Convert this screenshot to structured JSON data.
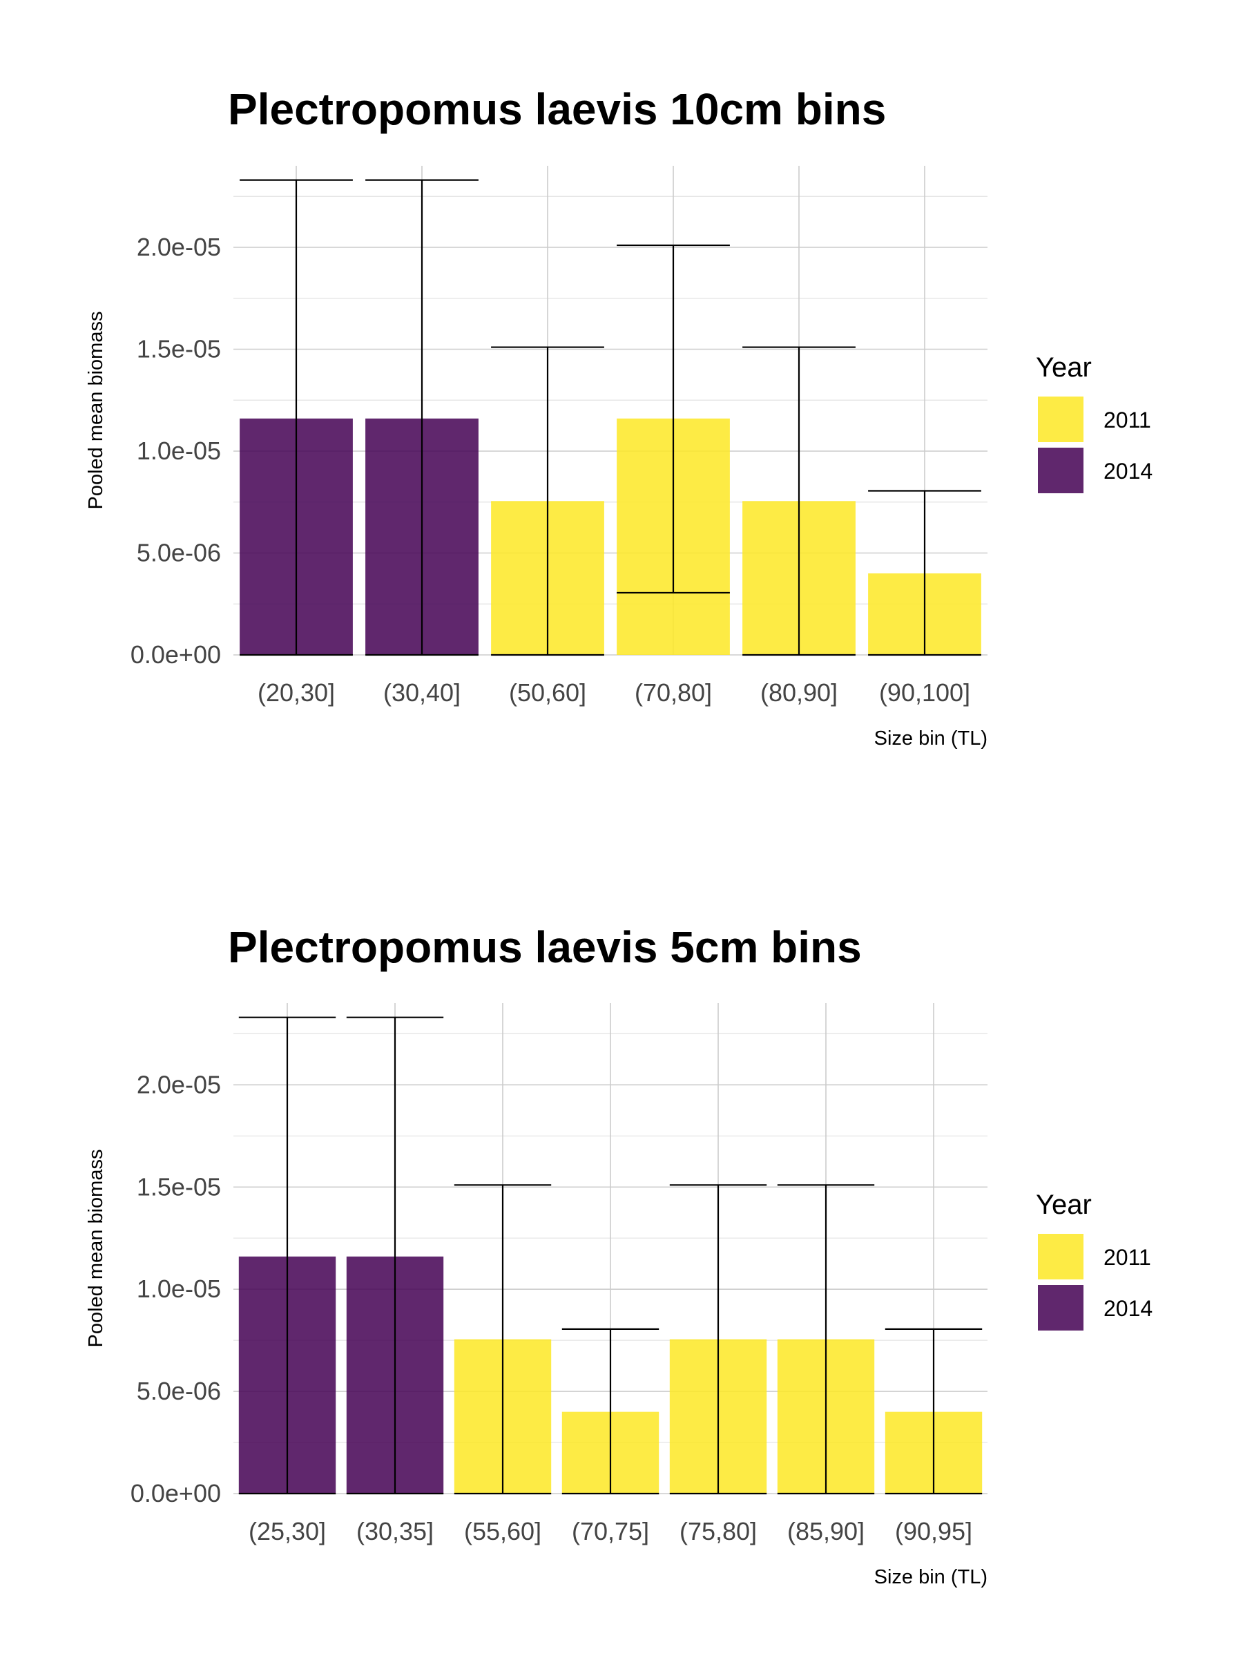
{
  "chart_data": [
    {
      "type": "bar",
      "title": "Plectropomus laevis 10cm bins",
      "xlabel": "Size bin (TL)",
      "ylabel": "Pooled mean biomass",
      "ylim": [
        0,
        2.4e-05
      ],
      "y_ticks": [
        0,
        5e-06,
        1e-05,
        1.5e-05,
        2e-05
      ],
      "y_tick_labels": [
        "0.0e+00",
        "5.0e-06",
        "1.0e-05",
        "1.5e-05",
        "2.0e-05"
      ],
      "categories": [
        "(20,30]",
        "(30,40]",
        "(50,60]",
        "(70,80]",
        "(80,90]",
        "(90,100]"
      ],
      "values": [
        1.16e-05,
        1.16e-05,
        7.55e-06,
        1.16e-05,
        7.55e-06,
        4e-06
      ],
      "years": [
        "2014",
        "2014",
        "2011",
        "2011",
        "2011",
        "2011"
      ],
      "error_lower": [
        0,
        0,
        0,
        3.05e-06,
        0,
        0
      ],
      "error_upper": [
        2.33e-05,
        2.33e-05,
        1.51e-05,
        2.01e-05,
        1.51e-05,
        8.05e-06
      ],
      "grid": true,
      "legend": {
        "title": "Year",
        "placement": "right",
        "entries": [
          {
            "label": "2011",
            "color": "#FDE725"
          },
          {
            "label": "2014",
            "color": "#440154"
          }
        ]
      }
    },
    {
      "type": "bar",
      "title": "Plectropomus laevis 5cm bins",
      "xlabel": "Size bin (TL)",
      "ylabel": "Pooled mean biomass",
      "ylim": [
        0,
        2.4e-05
      ],
      "y_ticks": [
        0,
        5e-06,
        1e-05,
        1.5e-05,
        2e-05
      ],
      "y_tick_labels": [
        "0.0e+00",
        "5.0e-06",
        "1.0e-05",
        "1.5e-05",
        "2.0e-05"
      ],
      "categories": [
        "(25,30]",
        "(30,35]",
        "(55,60]",
        "(70,75]",
        "(75,80]",
        "(85,90]",
        "(90,95]"
      ],
      "values": [
        1.16e-05,
        1.16e-05,
        7.55e-06,
        4e-06,
        7.55e-06,
        7.55e-06,
        4e-06
      ],
      "years": [
        "2014",
        "2014",
        "2011",
        "2011",
        "2011",
        "2011",
        "2011"
      ],
      "error_lower": [
        0,
        0,
        0,
        0,
        0,
        0,
        0
      ],
      "error_upper": [
        2.33e-05,
        2.33e-05,
        1.51e-05,
        8.05e-06,
        1.51e-05,
        1.51e-05,
        8.05e-06
      ],
      "grid": true,
      "legend": {
        "title": "Year",
        "placement": "right",
        "entries": [
          {
            "label": "2011",
            "color": "#FDE725"
          },
          {
            "label": "2014",
            "color": "#440154"
          }
        ]
      }
    }
  ],
  "colors": {
    "2011": "#FDE725",
    "2014": "#440154",
    "bar_opacity": 0.85
  }
}
